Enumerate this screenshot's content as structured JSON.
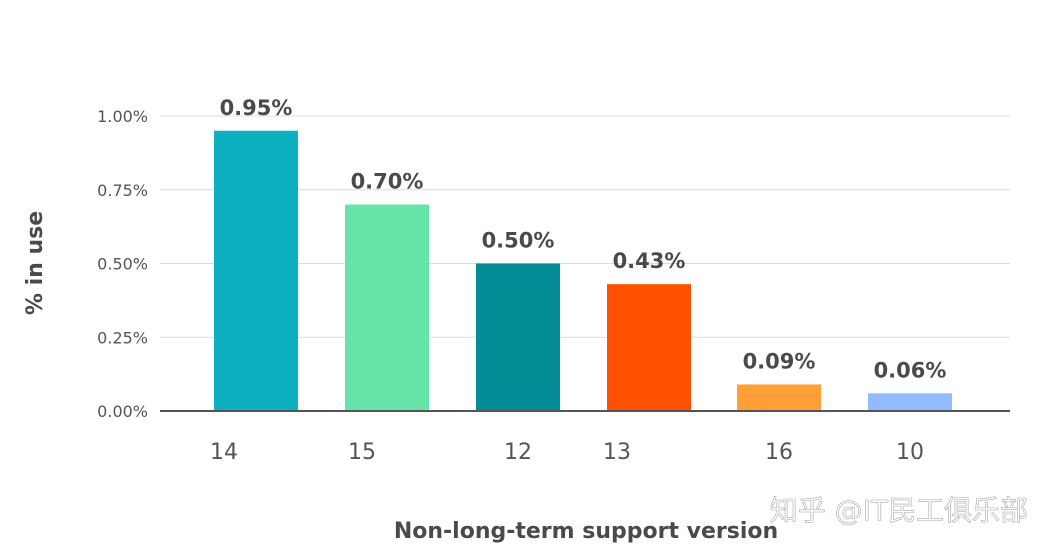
{
  "chart_data": {
    "type": "bar",
    "categories": [
      "14",
      "15",
      "12",
      "13",
      "16",
      "10"
    ],
    "values": [
      0.95,
      0.7,
      0.5,
      0.43,
      0.09,
      0.06
    ],
    "data_labels": [
      "0.95%",
      "0.70%",
      "0.50%",
      "0.43%",
      "0.09%",
      "0.06%"
    ],
    "colors": [
      "#0bb1c0",
      "#66e3a8",
      "#038b96",
      "#ff5000",
      "#ff9f36",
      "#93bbff"
    ],
    "xlabel": "Non-long-term support version",
    "ylabel": "% in use",
    "ylim": [
      0,
      1.0
    ],
    "yticks": [
      0,
      0.25,
      0.5,
      0.75,
      1.0
    ],
    "ytick_labels": [
      "0.00%",
      "0.25%",
      "0.50%",
      "0.75%",
      "1.00%"
    ],
    "grid": true
  },
  "watermark": "知乎 @IT民工俱乐部"
}
